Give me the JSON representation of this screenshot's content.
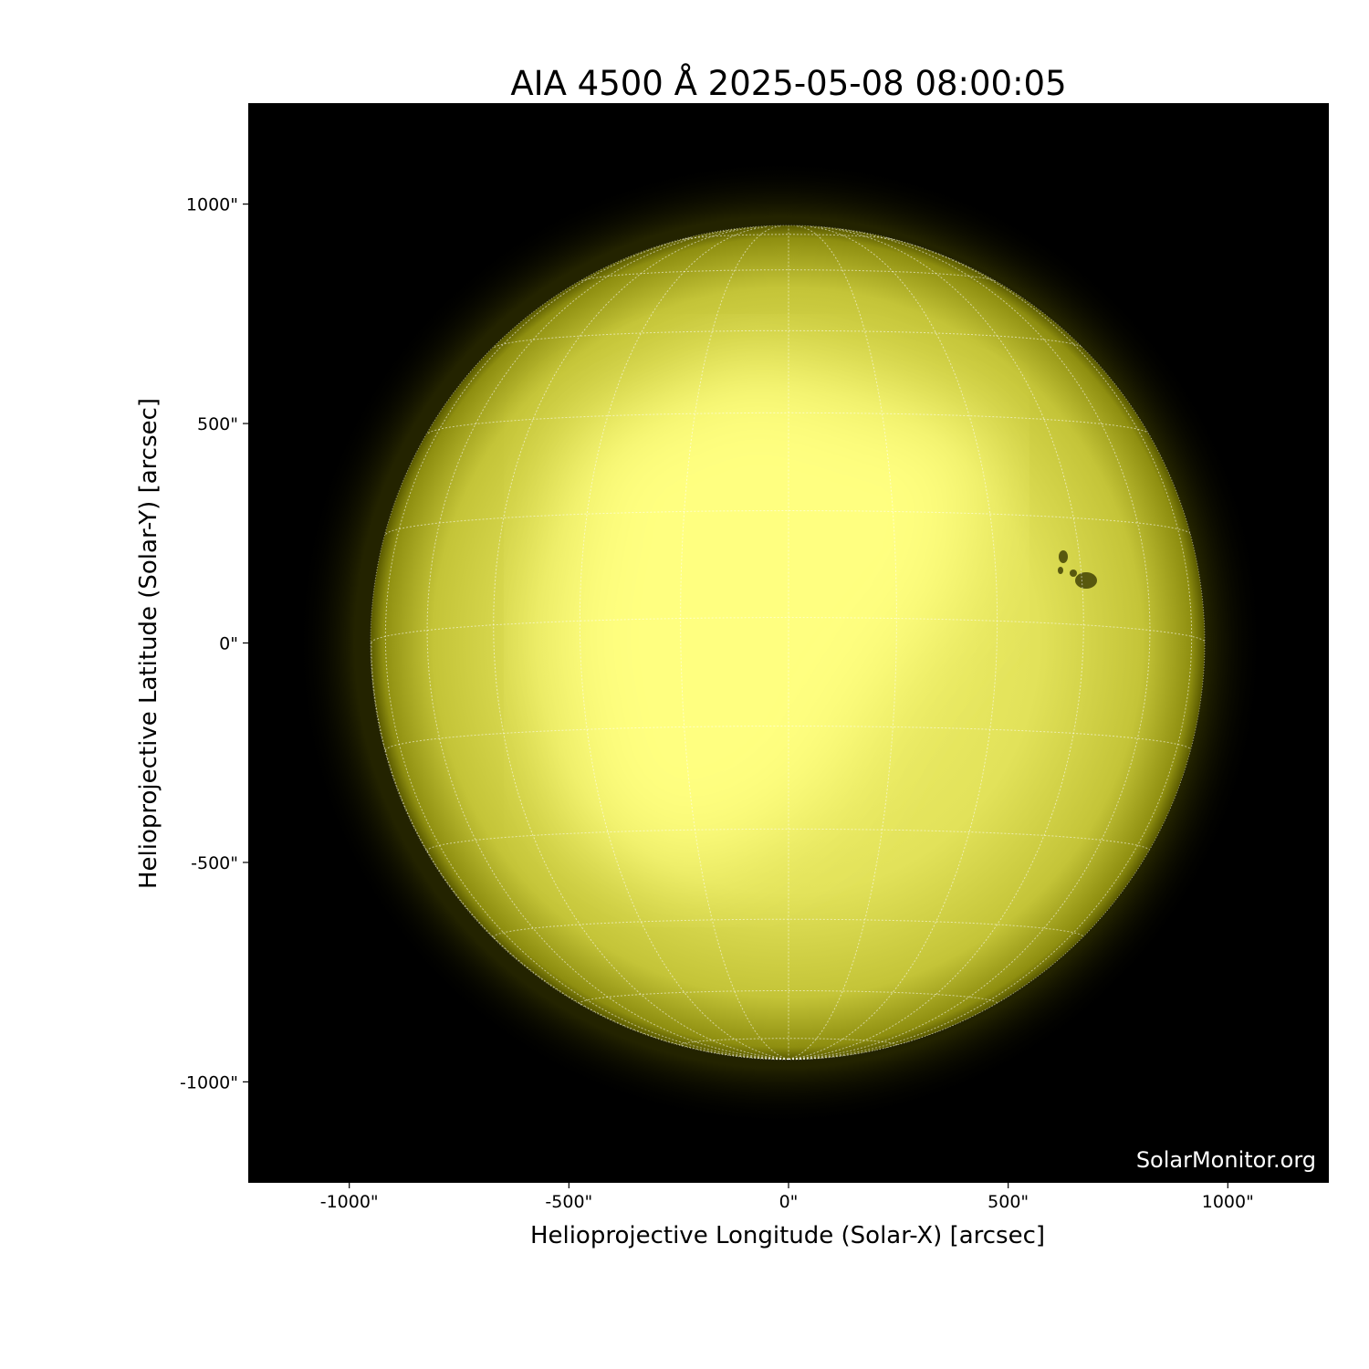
{
  "chart_data": {
    "type": "image",
    "title": "AIA 4500 Å 2025-05-08 08:00:05",
    "xlabel": "Helioprojective Longitude (Solar-X) [arcsec]",
    "ylabel": "Helioprojective Latitude (Solar-Y) [arcsec]",
    "xlim": [
      -1230,
      1230
    ],
    "ylim": [
      -1230,
      1230
    ],
    "xticks": [
      -1000,
      -500,
      0,
      500,
      1000
    ],
    "yticks": [
      1000,
      500,
      0,
      -500,
      -1000
    ],
    "xtick_labels": [
      "-1000\"",
      "-500\"",
      "0\"",
      "500\"",
      "1000\""
    ],
    "ytick_labels": [
      "1000\"",
      "500\"",
      "0\"",
      "-500\"",
      "-1000\""
    ],
    "solar_radius_arcsec": 950,
    "grid_spacing_deg": 15,
    "grid": true,
    "colormap": "yellow (sdoaia4500)",
    "colors": {
      "background": "#000000",
      "disk_bright": "#ffff80",
      "disk_limb": "#6b6b00",
      "grid": "#ffffff"
    },
    "watermark": "SolarMonitor.org"
  }
}
